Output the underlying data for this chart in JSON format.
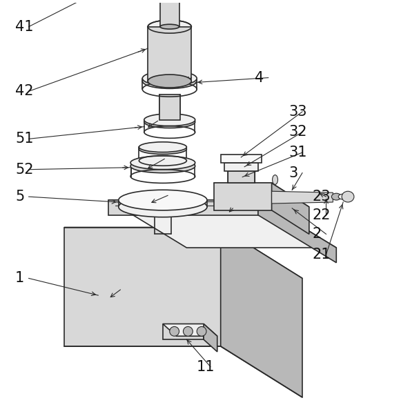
{
  "background_color": "#ffffff",
  "fig_width": 5.94,
  "fig_height": 5.9,
  "dpi": 100,
  "line_color": "#2a2a2a",
  "label_fontsize": 15,
  "label_color": "#111111",
  "gray_light": "#f0f0f0",
  "gray_mid": "#d8d8d8",
  "gray_dark": "#b8b8b8",
  "gray_very_light": "#f8f8f8"
}
